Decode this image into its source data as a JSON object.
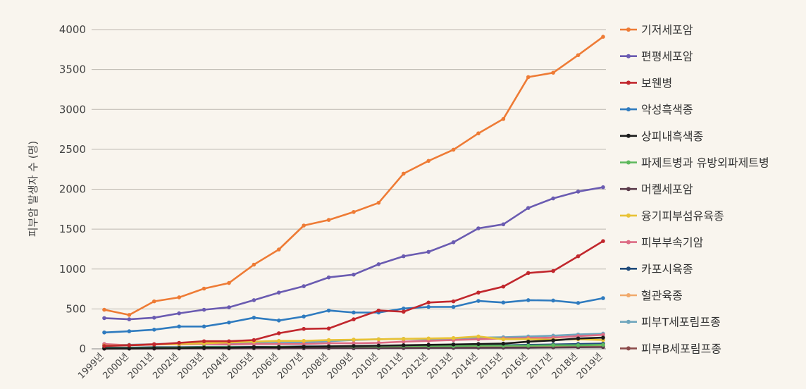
{
  "chart_data": {
    "type": "line",
    "title": "",
    "xlabel": "",
    "ylabel": "피부암 발생자 수 (명)",
    "ylim": [
      0,
      4000
    ],
    "yticks": [
      0,
      500,
      1000,
      1500,
      2000,
      2500,
      3000,
      3500,
      4000
    ],
    "grid": true,
    "legend_position": "right",
    "categories": [
      "1999년",
      "2000년",
      "2001년",
      "2002년",
      "2003년",
      "2004년",
      "2005년",
      "2006년",
      "2007년",
      "2008년",
      "2009년",
      "2010년",
      "2011년",
      "2012년",
      "2013년",
      "2014년",
      "2015년",
      "2016년",
      "2017년",
      "2018년",
      "2019년"
    ],
    "series": [
      {
        "name": "기저세포암",
        "color": "#ee7b35",
        "values": [
          490,
          425,
          595,
          645,
          755,
          825,
          1055,
          1245,
          1545,
          1615,
          1715,
          1830,
          2195,
          2355,
          2495,
          2700,
          2880,
          3405,
          3460,
          3680,
          3910
        ]
      },
      {
        "name": "편평세포암",
        "color": "#6a5bb1",
        "values": [
          385,
          370,
          390,
          445,
          490,
          520,
          610,
          705,
          785,
          895,
          930,
          1060,
          1160,
          1215,
          1335,
          1510,
          1560,
          1765,
          1885,
          1970,
          2025
        ]
      },
      {
        "name": "보웬병",
        "color": "#c1272d",
        "values": [
          35,
          45,
          55,
          75,
          95,
          95,
          110,
          195,
          250,
          255,
          370,
          480,
          465,
          580,
          595,
          705,
          780,
          950,
          975,
          1160,
          1350
        ]
      },
      {
        "name": "악성흑색종",
        "color": "#2f7bbf",
        "values": [
          205,
          220,
          240,
          280,
          280,
          330,
          390,
          355,
          405,
          480,
          455,
          455,
          505,
          525,
          525,
          600,
          580,
          610,
          605,
          575,
          635
        ]
      },
      {
        "name": "상피내흑색종",
        "color": "#1a1a1a",
        "values": [
          5,
          5,
          10,
          10,
          15,
          15,
          20,
          20,
          25,
          30,
          35,
          40,
          45,
          50,
          55,
          60,
          65,
          90,
          105,
          130,
          140
        ]
      },
      {
        "name": "파제트병과 유방외파제트병",
        "color": "#5db85c",
        "values": [
          10,
          10,
          15,
          15,
          20,
          20,
          20,
          25,
          25,
          30,
          30,
          30,
          35,
          35,
          35,
          40,
          40,
          40,
          45,
          45,
          50
        ]
      },
      {
        "name": "머켈세포암",
        "color": "#5a3a4a",
        "values": [
          2,
          3,
          3,
          4,
          5,
          5,
          6,
          6,
          7,
          8,
          8,
          10,
          10,
          12,
          12,
          14,
          15,
          16,
          18,
          20,
          22
        ]
      },
      {
        "name": "융기피부섬유육종",
        "color": "#e8c235",
        "values": [
          40,
          45,
          55,
          60,
          70,
          80,
          90,
          100,
          100,
          110,
          115,
          120,
          125,
          130,
          135,
          155,
          120,
          120,
          115,
          120,
          110
        ]
      },
      {
        "name": "피부부속기암",
        "color": "#dc6b84",
        "values": [
          60,
          45,
          60,
          55,
          60,
          55,
          60,
          60,
          60,
          70,
          70,
          75,
          90,
          100,
          110,
          120,
          130,
          135,
          140,
          160,
          175
        ]
      },
      {
        "name": "카포시육종",
        "color": "#1f4a7a",
        "values": [
          15,
          15,
          20,
          20,
          25,
          25,
          25,
          25,
          30,
          30,
          30,
          35,
          35,
          40,
          40,
          45,
          45,
          50,
          55,
          60,
          65
        ]
      },
      {
        "name": "혈관육종",
        "color": "#f0a96b",
        "values": [
          10,
          10,
          10,
          10,
          15,
          15,
          15,
          15,
          15,
          20,
          20,
          20,
          20,
          25,
          25,
          25,
          25,
          30,
          30,
          30,
          35
        ]
      },
      {
        "name": "피부T세포림프종",
        "color": "#6fa6bd",
        "values": [
          50,
          50,
          60,
          65,
          70,
          70,
          80,
          85,
          80,
          95,
          110,
          120,
          125,
          120,
          130,
          140,
          145,
          155,
          165,
          180,
          190
        ]
      },
      {
        "name": "피부B세포림프종",
        "color": "#8b4a4a",
        "values": [
          5,
          5,
          5,
          8,
          10,
          10,
          10,
          12,
          12,
          15,
          15,
          18,
          20,
          20,
          25,
          25,
          30,
          30,
          35,
          40,
          45
        ]
      }
    ]
  }
}
